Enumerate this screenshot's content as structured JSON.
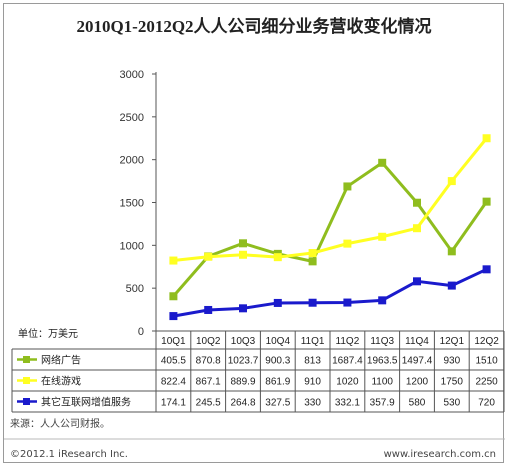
{
  "chart_data": {
    "type": "line",
    "title": "2010Q1-2012Q2人人公司细分业务营收变化情况",
    "unit_label": "单位：万美元",
    "categories": [
      "10Q1",
      "10Q2",
      "10Q3",
      "10Q4",
      "11Q1",
      "11Q2",
      "11Q3",
      "11Q4",
      "12Q1",
      "12Q2"
    ],
    "y_ticks": [
      0,
      500,
      1000,
      1500,
      2000,
      2500,
      3000
    ],
    "ylim": [
      0,
      3000
    ],
    "grid": false,
    "series": [
      {
        "name": "网络广告",
        "color": "#8fbd1e",
        "marker": "square",
        "values": [
          405.5,
          870.8,
          1023.7,
          900.3,
          813,
          1687.4,
          1963.5,
          1497.4,
          930,
          1510
        ],
        "labels": [
          "405.5",
          "870.8",
          "1023.7",
          "900.3",
          "813",
          "1687.4",
          "1963.5",
          "1497.4",
          "930",
          "1510"
        ]
      },
      {
        "name": "在线游戏",
        "color": "#ffff22",
        "marker": "square",
        "values": [
          822.4,
          867.1,
          889.9,
          861.9,
          910,
          1020,
          1100,
          1200,
          1750,
          2250
        ],
        "labels": [
          "822.4",
          "867.1",
          "889.9",
          "861.9",
          "910",
          "1020",
          "1100",
          "1200",
          "1750",
          "2250"
        ]
      },
      {
        "name": "其它互联网增值服务",
        "color": "#1a1acc",
        "marker": "square",
        "values": [
          174.1,
          245.5,
          264.8,
          327.5,
          330,
          332.1,
          357.9,
          580,
          530,
          720
        ],
        "labels": [
          "174.1",
          "245.5",
          "264.8",
          "327.5",
          "330",
          "332.1",
          "357.9",
          "580",
          "530",
          "720"
        ]
      }
    ],
    "source": "来源：人人公司财报。",
    "copyright": "©2012.1 iResearch Inc.",
    "website": "www.iresearch.com.cn"
  }
}
